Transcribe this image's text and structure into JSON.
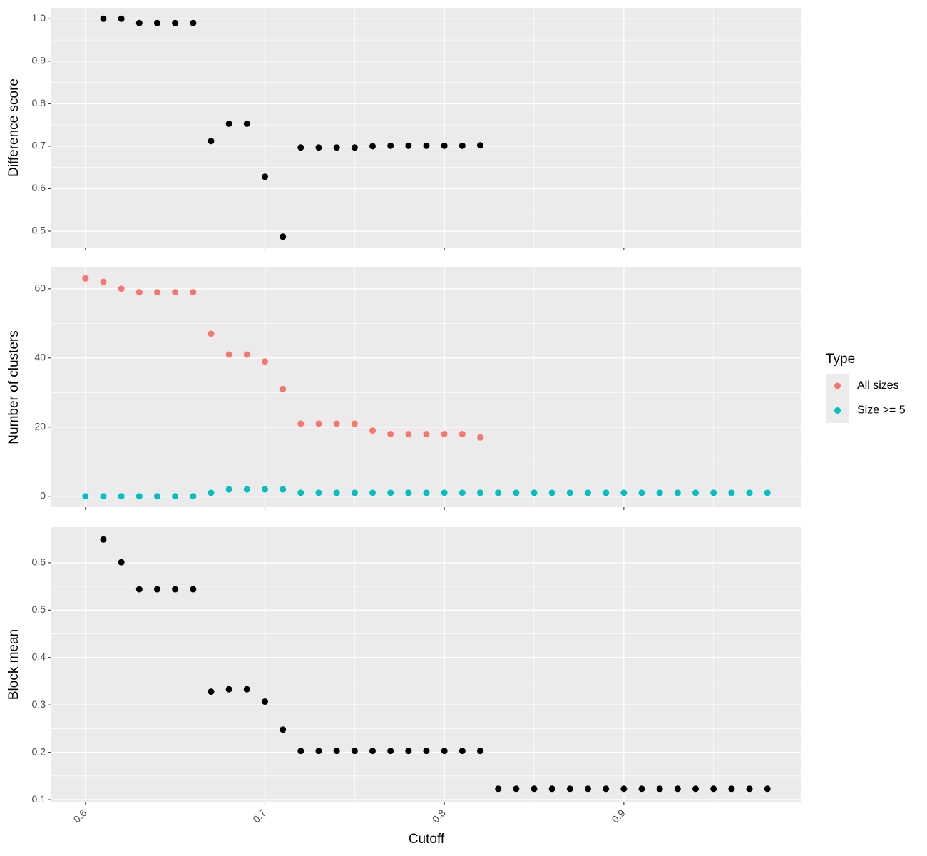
{
  "chart_data": [
    {
      "type": "scatter",
      "ylabel": "Difference score",
      "color": "#000000",
      "x": [
        0.61,
        0.62,
        0.63,
        0.64,
        0.65,
        0.66,
        0.67,
        0.68,
        0.69,
        0.7,
        0.71,
        0.72,
        0.73,
        0.74,
        0.75,
        0.76,
        0.77,
        0.78,
        0.79,
        0.8,
        0.81,
        0.82
      ],
      "values": [
        1.0,
        1.0,
        0.99,
        0.99,
        0.99,
        0.99,
        0.712,
        0.753,
        0.753,
        0.628,
        0.487,
        0.697,
        0.697,
        0.697,
        0.697,
        0.7,
        0.701,
        0.701,
        0.701,
        0.701,
        0.701,
        0.702
      ],
      "ylim": [
        0.4614,
        1.0257
      ],
      "yticks": [
        0.5,
        0.6,
        0.7,
        0.8,
        0.9,
        {
          "value": 1.0,
          "label": "1.0"
        }
      ],
      "grid": true
    },
    {
      "type": "scatter",
      "ylabel": "Number of clusters",
      "legend_title": "Type",
      "legend": "right",
      "x": [
        0.6,
        0.61,
        0.62,
        0.63,
        0.64,
        0.65,
        0.66,
        0.67,
        0.68,
        0.69,
        0.7,
        0.71,
        0.72,
        0.73,
        0.74,
        0.75,
        0.76,
        0.77,
        0.78,
        0.79,
        0.8,
        0.81,
        0.82,
        0.83,
        0.84,
        0.85,
        0.86,
        0.87,
        0.88,
        0.89,
        0.9,
        0.91,
        0.92,
        0.93,
        0.94,
        0.95,
        0.96,
        0.97,
        0.98
      ],
      "series": [
        {
          "name": "All sizes",
          "color": "#F8766D",
          "values": [
            63,
            62,
            60,
            59,
            59,
            59,
            59,
            47,
            41,
            41,
            39,
            31,
            21,
            21,
            21,
            21,
            19,
            18,
            18,
            18,
            18,
            18,
            17,
            null,
            null,
            null,
            null,
            null,
            null,
            null,
            null,
            null,
            null,
            null,
            null,
            null,
            null,
            null,
            null
          ]
        },
        {
          "name": "Size >= 5",
          "color": "#00BFC4",
          "values": [
            0,
            0,
            0,
            0,
            0,
            0,
            0,
            1,
            2,
            2,
            2,
            2,
            1,
            1,
            1,
            1,
            1,
            1,
            1,
            1,
            1,
            1,
            1,
            1,
            1,
            1,
            1,
            1,
            1,
            1,
            1,
            1,
            1,
            1,
            1,
            1,
            1,
            1,
            1
          ]
        }
      ],
      "ylim": [
        -3.15,
        66.15
      ],
      "yticks": [
        0,
        20,
        40,
        60
      ],
      "grid": true
    },
    {
      "type": "scatter",
      "ylabel": "Block mean",
      "xlabel": "Cutoff",
      "color": "#000000",
      "x": [
        0.61,
        0.62,
        0.63,
        0.64,
        0.65,
        0.66,
        0.67,
        0.68,
        0.69,
        0.7,
        0.71,
        0.72,
        0.73,
        0.74,
        0.75,
        0.76,
        0.77,
        0.78,
        0.79,
        0.8,
        0.81,
        0.82,
        0.83,
        0.84,
        0.85,
        0.86,
        0.87,
        0.88,
        0.89,
        0.9,
        0.91,
        0.92,
        0.93,
        0.94,
        0.95,
        0.96,
        0.97,
        0.98
      ],
      "values": [
        0.649,
        0.601,
        0.544,
        0.544,
        0.544,
        0.544,
        0.328,
        0.333,
        0.333,
        0.307,
        0.248,
        0.203,
        0.203,
        0.203,
        0.203,
        0.203,
        0.203,
        0.203,
        0.203,
        0.203,
        0.203,
        0.203,
        0.123,
        0.123,
        0.123,
        0.123,
        0.123,
        0.123,
        0.123,
        0.123,
        0.123,
        0.123,
        0.123,
        0.123,
        0.123,
        0.123,
        0.123,
        0.123
      ],
      "ylim": [
        0.0956,
        0.675
      ],
      "yticks": [
        0.1,
        0.2,
        0.3,
        0.4,
        0.5,
        0.6
      ],
      "xlim": [
        0.581,
        0.999
      ],
      "xticks": [
        0.6,
        0.7,
        0.8,
        0.9
      ],
      "grid": true
    }
  ]
}
